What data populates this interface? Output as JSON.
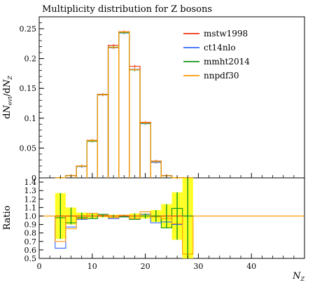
{
  "chart_data": {
    "type": "line",
    "title": "Multiplicity distribution for Z bosons",
    "ylabel_main": "dN_evt/dN_Z",
    "ylabel_ratio": "Ratio",
    "xlabel": "N_Z",
    "xlim": [
      0,
      50
    ],
    "ylim_main": [
      0,
      0.27
    ],
    "ylim_ratio": [
      0.5,
      1.45
    ],
    "x_ticks": [
      "0",
      "10",
      "20",
      "30",
      "40"
    ],
    "x_tick_values": [
      0,
      10,
      20,
      30,
      40
    ],
    "y_ticks_main": [
      "0",
      "0.05",
      "0.1",
      "0.15",
      "0.2",
      "0.25"
    ],
    "y_tick_values_main": [
      0,
      0.05,
      0.1,
      0.15,
      0.2,
      0.25
    ],
    "y_ticks_ratio": [
      "0.5",
      "0.6",
      "0.7",
      "0.8",
      "0.9",
      "1.0",
      "1.1",
      "1.2",
      "1.3",
      "1.4"
    ],
    "y_tick_values_ratio": [
      0.5,
      0.6,
      0.7,
      0.8,
      0.9,
      1.0,
      1.1,
      1.2,
      1.3,
      1.4
    ],
    "legend_position": "top-right",
    "bin_edges": [
      3,
      5,
      7,
      9,
      11,
      13,
      15,
      17,
      19,
      21,
      23,
      25,
      27,
      29
    ],
    "reference_band": {
      "color": "#ffff00",
      "ratio_low": [
        0.73,
        0.9,
        0.96,
        0.97,
        0.985,
        0.985,
        0.99,
        0.97,
        0.97,
        0.93,
        0.86,
        0.72,
        0.5
      ],
      "ratio_high": [
        1.27,
        1.1,
        1.04,
        1.03,
        1.015,
        1.015,
        1.01,
        1.03,
        1.03,
        1.07,
        1.14,
        1.28,
        1.45
      ]
    },
    "series": [
      {
        "name": "mstw1998",
        "color": "#ee3311",
        "values": [
          0.0003,
          0.004,
          0.02,
          0.063,
          0.14,
          0.222,
          0.245,
          0.187,
          0.093,
          0.028,
          0.004,
          0.0003,
          0.0001
        ],
        "ratio": [
          1.0,
          1.0,
          1.0,
          1.0,
          1.0,
          1.0,
          1.0,
          1.0,
          1.0,
          1.0,
          1.0,
          1.0,
          1.0
        ]
      },
      {
        "name": "ct14nlo",
        "color": "#3366ff",
        "values": [
          0.0002,
          0.0036,
          0.019,
          0.062,
          0.139,
          0.218,
          0.243,
          0.182,
          0.091,
          0.026,
          0.0037,
          0.0003,
          0.0001
        ],
        "ratio": [
          0.62,
          0.87,
          0.96,
          0.97,
          1.01,
          0.97,
          0.99,
          0.97,
          1.02,
          0.92,
          0.93,
          0.9,
          1.0
        ]
      },
      {
        "name": "mmht2014",
        "color": "#109618",
        "values": [
          0.0003,
          0.0037,
          0.0195,
          0.0615,
          0.1395,
          0.219,
          0.2435,
          0.181,
          0.0915,
          0.0275,
          0.0035,
          0.0003,
          0.0001
        ],
        "ratio": [
          0.98,
          0.92,
          0.98,
          0.97,
          1.02,
          0.98,
          0.99,
          0.96,
          1.0,
          1.0,
          0.86,
          1.09,
          1.0
        ]
      },
      {
        "name": "nnpdf30",
        "color": "#ff9900",
        "values": [
          0.0002,
          0.0035,
          0.0198,
          0.0625,
          0.1392,
          0.2185,
          0.2445,
          0.1815,
          0.0922,
          0.0272,
          0.0036,
          0.0003,
          0.0001
        ],
        "ratio": [
          0.7,
          0.85,
          0.97,
          1.03,
          1.01,
          0.98,
          1.01,
          0.97,
          1.05,
          0.99,
          0.97,
          0.91,
          0.55
        ]
      }
    ]
  }
}
